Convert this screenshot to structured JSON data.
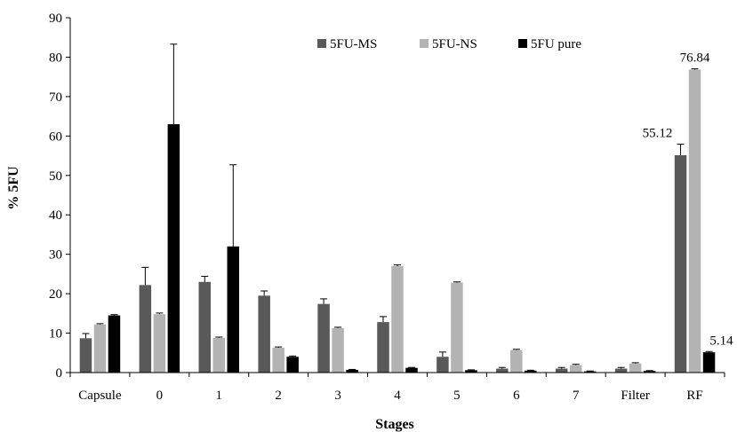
{
  "chart_data": {
    "type": "bar",
    "categories": [
      "Capsule",
      "0",
      "1",
      "2",
      "3",
      "4",
      "5",
      "6",
      "7",
      "Filter",
      "RF"
    ],
    "series": [
      {
        "name": "5FU-MS",
        "color": "#595959",
        "values": [
          8.7,
          22.2,
          23.0,
          19.5,
          17.4,
          12.8,
          4.0,
          1.0,
          1.0,
          1.0,
          55.12
        ],
        "errors": [
          1.2,
          4.5,
          1.4,
          1.2,
          1.3,
          1.4,
          1.2,
          0.3,
          0.3,
          0.3,
          2.8
        ]
      },
      {
        "name": "5FU-NS",
        "color": "#b3b3b3",
        "values": [
          12.2,
          14.8,
          8.8,
          6.3,
          11.3,
          27.0,
          22.8,
          5.7,
          1.9,
          2.3,
          76.84
        ],
        "errors": [
          0.2,
          0.3,
          0.2,
          0.2,
          0.2,
          0.3,
          0.2,
          0.2,
          0.2,
          0.2,
          0.2
        ]
      },
      {
        "name": "5FU pure",
        "color": "#000000",
        "values": [
          14.5,
          63.0,
          32.0,
          4.0,
          0.7,
          1.2,
          0.6,
          0.5,
          0.3,
          0.4,
          5.14
        ],
        "errors": [
          0.2,
          20.3,
          20.7,
          0.2,
          0.1,
          0.1,
          0.1,
          0.1,
          0.1,
          0.1,
          0.2
        ]
      }
    ],
    "data_labels": [
      {
        "category": "RF",
        "series": "5FU-MS",
        "text": "55.12"
      },
      {
        "category": "RF",
        "series": "5FU-NS",
        "text": "76.84"
      },
      {
        "category": "RF",
        "series": "5FU pure",
        "text": "5.14"
      }
    ],
    "xlabel": "Stages",
    "ylabel": "% 5FU",
    "ylim": [
      0,
      90
    ],
    "yticks": [
      0,
      10,
      20,
      30,
      40,
      50,
      60,
      70,
      80,
      90
    ],
    "grid": false,
    "legend_position": "top-right"
  }
}
